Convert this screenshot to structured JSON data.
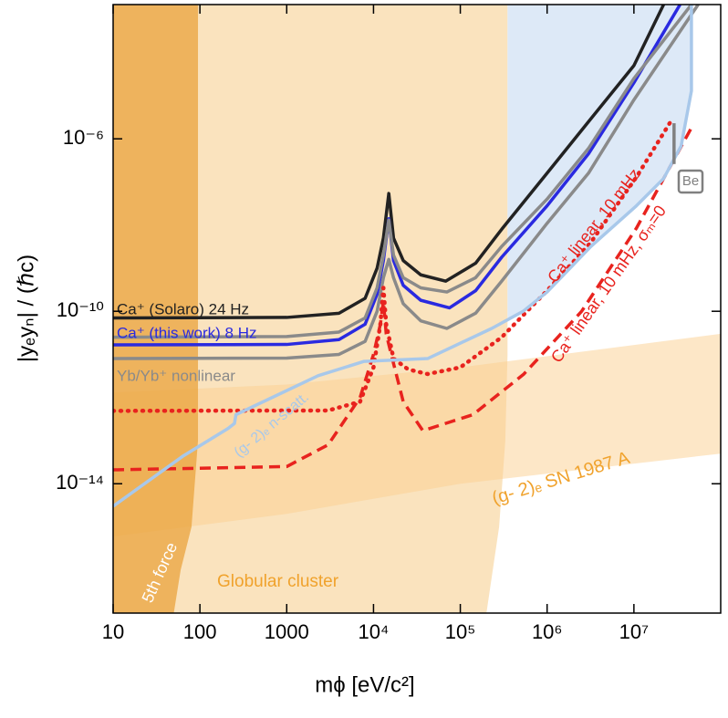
{
  "chart_data": {
    "type": "line",
    "xlabel": "mϕ [eV/c²]",
    "ylabel": "|yₑyₙ| / (ℏc)",
    "xscale": "log",
    "yscale": "log",
    "xlim": [
      10,
      100000000
    ],
    "ylim": [
      1e-17,
      0.0013
    ],
    "xticks": [
      10,
      100,
      1000,
      {
        "value": 10000,
        "label": "10⁴"
      },
      {
        "value": 100000,
        "label": "10⁵"
      },
      {
        "value": 1000000,
        "label": "10⁶"
      },
      {
        "value": 10000000,
        "label": "10⁷"
      }
    ],
    "yticks": [
      {
        "value": 1e-14,
        "label": "10⁻¹⁴"
      },
      {
        "value": 1e-10,
        "label": "10⁻¹⁰"
      },
      {
        "value": 1e-06,
        "label": "10⁻⁶"
      }
    ],
    "regions": [
      {
        "name": "Globular cluster",
        "color": "#f5c77e",
        "x": [
          10,
          200000,
          280000,
          330000,
          350000,
          350000,
          10
        ],
        "y": [
          1e-17,
          1e-17,
          1e-15,
          1e-13,
          1e-11,
          0.0013,
          0.0013
        ]
      },
      {
        "name": "(g- 2)ₑ SN 1987 A",
        "color": "#fbd08f",
        "x": [
          10,
          1000,
          100000,
          100000000,
          100000000,
          100000,
          1000,
          10
        ],
        "y": [
          1.3e-12,
          2e-12,
          5e-12,
          3e-11,
          5e-14,
          1e-14,
          2e-15,
          6e-16
        ]
      },
      {
        "name": "5th force",
        "color": "#e9a33c",
        "x": [
          10,
          95,
          95,
          80,
          60,
          50,
          10
        ],
        "y": [
          0.0013,
          0.0013,
          1e-13,
          1e-15,
          1e-16,
          1e-17,
          1e-17
        ]
      },
      {
        "color": "#dde9f7",
        "x": [
          350000,
          46000000,
          46000000,
          35000000,
          22000000,
          10700000,
          3200000,
          1000000,
          530000,
          350000
        ],
        "y": [
          0.0013,
          0.0013,
          1.3e-05,
          6.8e-07,
          1.2e-07,
          2.8e-08,
          3.2e-09,
          2.8e-10,
          1e-10,
          7e-11
        ]
      }
    ],
    "series": [
      {
        "name": "Ca⁺ (Solaro) 24 Hz",
        "color": "#222222",
        "x": [
          10,
          1000,
          4000,
          8000,
          11000,
          13000,
          15000,
          17000,
          22000,
          35000,
          68000,
          150000,
          300000,
          1000000,
          3000000,
          10000000,
          22000000
        ],
        "values": [
          7e-11,
          7.2e-11,
          9e-11,
          2e-10,
          1e-09,
          5e-09,
          5.4e-08,
          5e-09,
          1.5e-09,
          7e-10,
          5e-10,
          1.3e-09,
          8e-09,
          1.6e-07,
          2.5e-06,
          5e-05,
          0.0013
        ]
      },
      {
        "name": "Ca⁺ (this work) 8 Hz",
        "color": "#2a2ae0",
        "x": [
          10,
          1000,
          4000,
          8000,
          11000,
          13000,
          15000,
          17000,
          22000,
          35000,
          75000,
          150000,
          300000,
          1000000,
          3000000,
          10000000,
          34000000
        ],
        "values": [
          1.66e-11,
          1.7e-11,
          2.2e-11,
          5e-11,
          2.5e-10,
          1.5e-09,
          1.4e-08,
          1.5e-09,
          4e-10,
          1.8e-10,
          1.2e-10,
          3e-10,
          1.8e-09,
          2.8e-08,
          4.5e-07,
          2e-05,
          0.0013
        ]
      },
      {
        "color": "#8a8a8a",
        "x": [
          10,
          1000,
          4000,
          8000,
          11000,
          13000,
          15000,
          17000,
          22000,
          35000,
          70000,
          150000,
          300000,
          1000000,
          3000000,
          10000000,
          46000000
        ],
        "values": [
          2.5e-11,
          2.6e-11,
          3.3e-11,
          7e-11,
          3.5e-10,
          2e-09,
          1.3e-08,
          2e-09,
          6e-10,
          3.5e-10,
          2.8e-10,
          6e-10,
          3.2e-09,
          4e-08,
          6e-07,
          2.5e-05,
          0.0013
        ]
      },
      {
        "name": "Yb/Yb⁺ nonlinear",
        "color": "#8a8a8a",
        "x": [
          10,
          1000,
          4000,
          8000,
          11000,
          13000,
          15000,
          17000,
          22000,
          35000,
          70000,
          150000,
          300000,
          1000000,
          3000000,
          10000000,
          55000000
        ],
        "values": [
          8e-12,
          8.2e-12,
          1e-11,
          2e-11,
          1e-10,
          6e-10,
          1.6e-09,
          6e-10,
          1.5e-10,
          6e-11,
          4e-11,
          9e-11,
          5e-10,
          1.1e-08,
          1.6e-07,
          8e-06,
          0.0013
        ]
      },
      {
        "name": "Ca⁺ linear, 10 mHz",
        "color": "#e8231e",
        "dash": "dotted",
        "x": [
          10,
          3000,
          7000,
          10000,
          12000,
          13000,
          14000,
          17000,
          25000,
          42000,
          100000,
          300000,
          1000000,
          3200000,
          10700000,
          28000000
        ],
        "values": [
          4.9e-13,
          5e-13,
          8e-13,
          5e-12,
          5e-11,
          3.5e-10,
          5e-11,
          8e-12,
          4.5e-12,
          3.5e-12,
          5e-12,
          2.5e-11,
          3e-10,
          4e-09,
          1.3e-07,
          3e-06
        ]
      },
      {
        "name": "Ca⁺ linear, 10 mHz, σₘ=0",
        "color": "#e8231e",
        "dash": "dashed",
        "x": [
          10,
          1000,
          3000,
          7000,
          10000,
          12000,
          13000,
          14000,
          16000,
          22000,
          37000,
          140000,
          540000,
          2500000,
          10700000,
          46000000
        ],
        "values": [
          2.1e-14,
          2.5e-14,
          8e-14,
          1e-12,
          1e-11,
          5e-11,
          1.7e-10,
          3e-11,
          1e-11,
          8e-13,
          1.7e-13,
          4e-13,
          3.5e-12,
          1e-10,
          8.5e-09,
          1.8e-06
        ]
      },
      {
        "name": "(g- 2)ₑ n-scatt.",
        "color": "#a8c8ea",
        "x": [
          10,
          63,
          210,
          250,
          260,
          2300,
          7800,
          42000,
          230000,
          530000,
          1000000,
          3200000,
          10700000,
          22000000,
          35000000,
          46000000,
          46000000
        ],
        "values": [
          3e-15,
          4.3e-14,
          1.9e-13,
          2.5e-13,
          4e-13,
          3.2e-12,
          6.9e-12,
          8e-12,
          4e-11,
          1e-10,
          2.8e-10,
          3.2e-09,
          2.8e-08,
          1.2e-07,
          6.8e-07,
          1.3e-05,
          0.0013
        ]
      },
      {
        "name": "Be",
        "color": "#808080",
        "x": [
          29000000,
          29000000
        ],
        "values": [
          2.3e-06,
          2.6e-07
        ]
      }
    ]
  }
}
